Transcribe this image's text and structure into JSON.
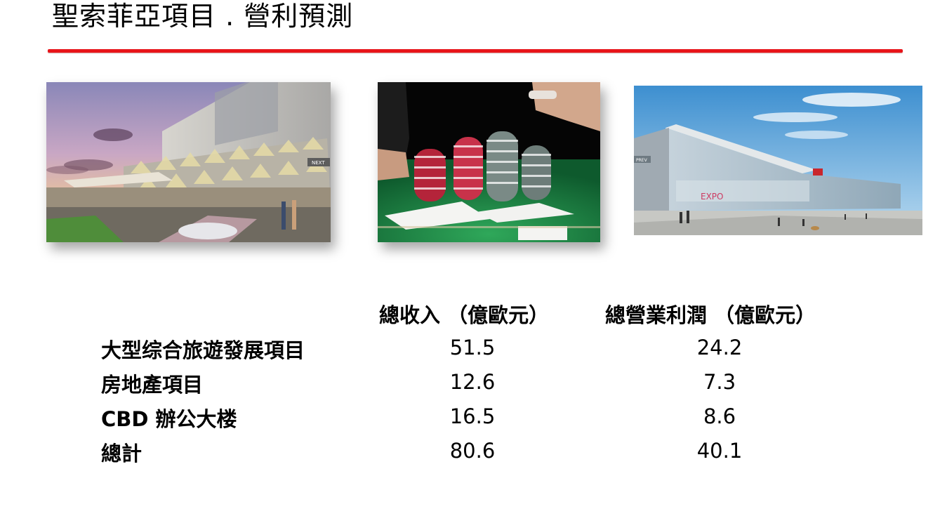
{
  "slide": {
    "title": "聖索菲亞項目 . 營利預測",
    "accent_color": "#e8141a"
  },
  "images": [
    {
      "name": "resort-rendering",
      "overlay_label": "NEXT"
    },
    {
      "name": "casino-chips"
    },
    {
      "name": "expo-hall-rendering",
      "overlay_label": "PREV",
      "sign_text": "EXPO"
    }
  ],
  "table": {
    "columns": [
      "總收入 （億歐元）",
      "總營業利潤 （億歐元）"
    ],
    "rows": [
      {
        "label": "大型综合旅遊發展項目",
        "revenue": "51.5",
        "profit": "24.2"
      },
      {
        "label": "房地產項目",
        "revenue": "12.6",
        "profit": "7.3"
      },
      {
        "label": "CBD 辦公大楼",
        "revenue": "16.5",
        "profit": "8.6"
      },
      {
        "label": "總計",
        "revenue": "80.6",
        "profit": "40.1"
      }
    ]
  }
}
